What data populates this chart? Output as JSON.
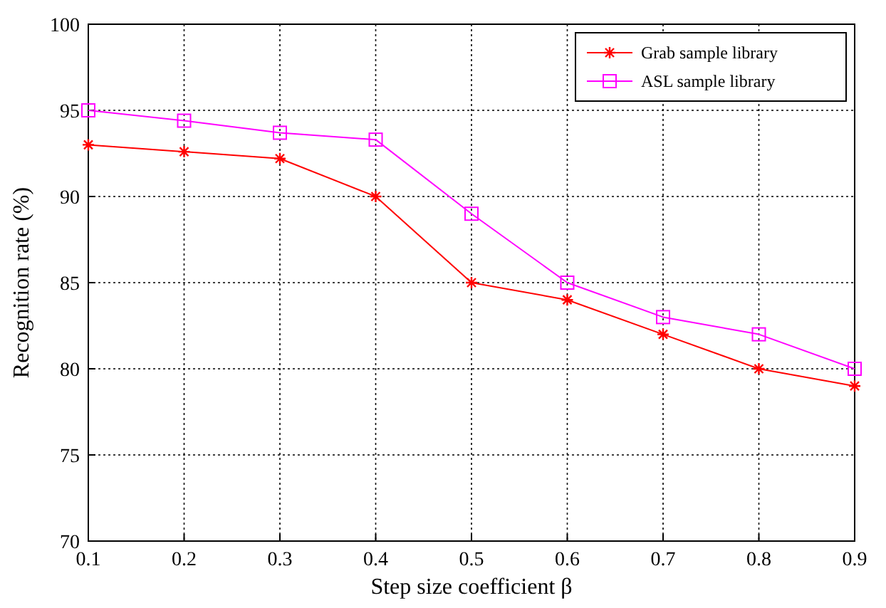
{
  "chart_data": {
    "type": "line",
    "xlabel": "Step size coefficient β",
    "ylabel": "Recognition rate (%)",
    "x": [
      0.1,
      0.2,
      0.3,
      0.4,
      0.5,
      0.6,
      0.7,
      0.8,
      0.9
    ],
    "xlim": [
      0.1,
      0.9
    ],
    "xticks": [
      0.1,
      0.2,
      0.3,
      0.4,
      0.5,
      0.6,
      0.7,
      0.8,
      0.9
    ],
    "ylim": [
      70,
      100
    ],
    "yticks": [
      70,
      75,
      80,
      85,
      90,
      95,
      100
    ],
    "grid": true,
    "legend": "top right",
    "line_style": "solid",
    "series": [
      {
        "name": "Grab sample library",
        "color": "#ff0000",
        "marker": "cross",
        "values": [
          93,
          92.6,
          92.2,
          90,
          85,
          84,
          82,
          80,
          79
        ]
      },
      {
        "name": "ASL sample library",
        "color": "#ff00ff",
        "marker": "square",
        "values": [
          95,
          94.4,
          93.7,
          93.3,
          89,
          85,
          83,
          82,
          80
        ]
      }
    ]
  }
}
